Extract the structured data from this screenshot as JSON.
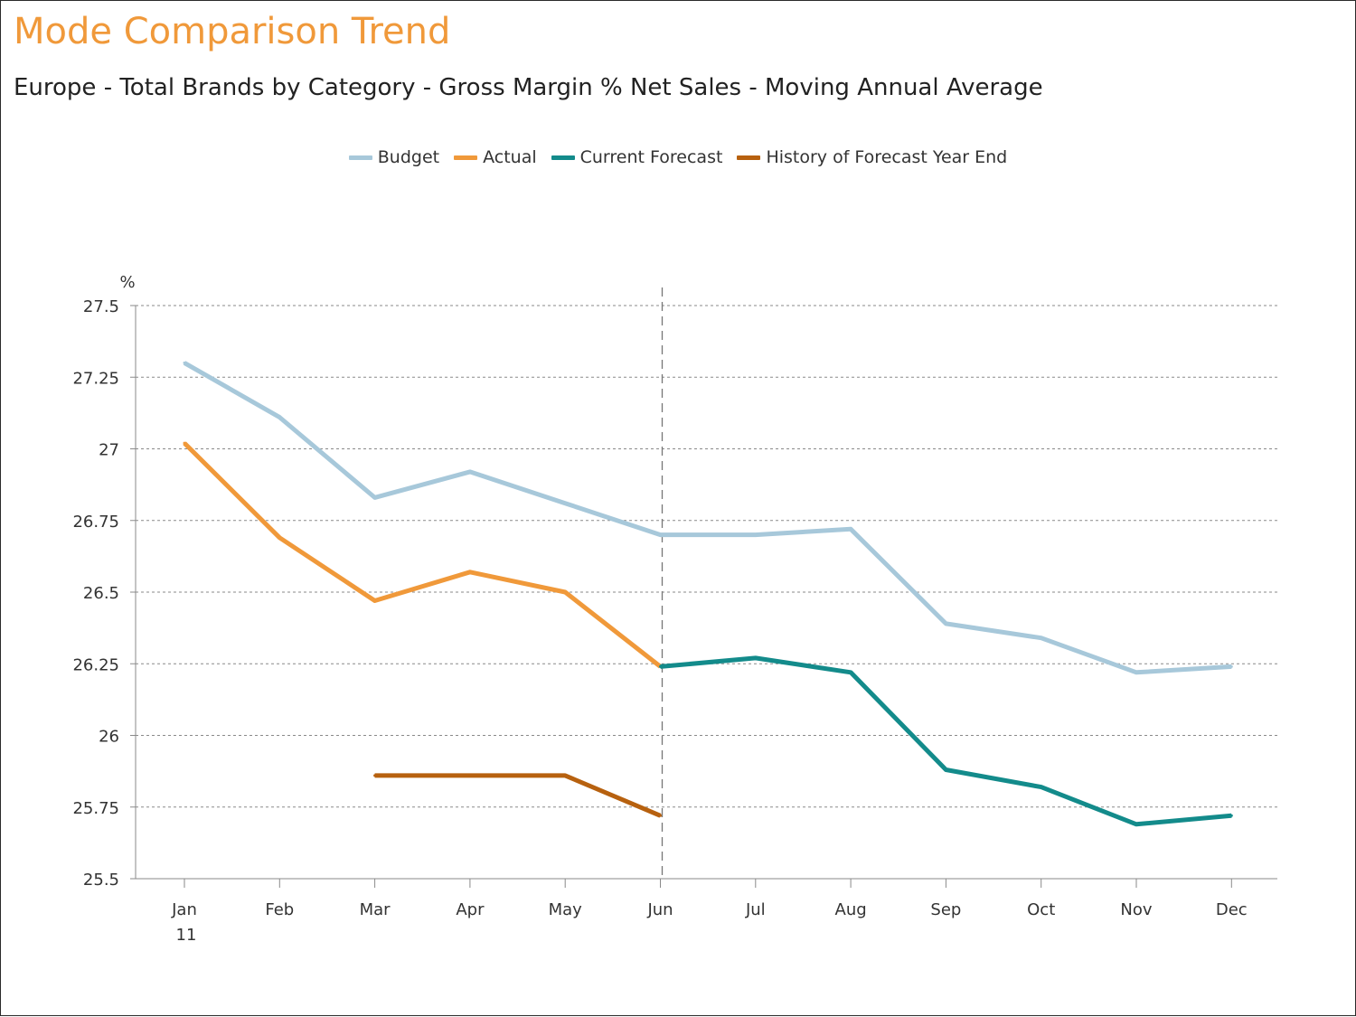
{
  "title": "Mode Comparison Trend",
  "subtitle": "Europe - Total Brands by Category - Gross Margin % Net Sales - Moving Annual Average",
  "legend": [
    {
      "label": "Budget",
      "color": "#A7C8DA"
    },
    {
      "label": "Actual",
      "color": "#F0993A"
    },
    {
      "label": "Current Forecast",
      "color": "#138B8B"
    },
    {
      "label": "History of Forecast Year End",
      "color": "#B7610F"
    }
  ],
  "chart_data": {
    "type": "line",
    "categories": [
      "Jan",
      "Feb",
      "Mar",
      "Apr",
      "May",
      "Jun",
      "Jul",
      "Aug",
      "Sep",
      "Oct",
      "Nov",
      "Dec"
    ],
    "year_label": "11",
    "ylabel": "%",
    "ylim": [
      25.5,
      27.5
    ],
    "yticks": [
      "27.5",
      "27.25",
      "27",
      "26.75",
      "26.5",
      "26.25",
      "26",
      "25.75",
      "25.5"
    ],
    "grid": true,
    "legend_position": "top-center",
    "divider_category": "Jun",
    "series": [
      {
        "name": "Budget",
        "color": "#A7C8DA",
        "values": [
          27.3,
          27.11,
          26.83,
          26.92,
          26.81,
          26.7,
          26.7,
          26.72,
          26.39,
          26.34,
          26.22,
          26.24
        ]
      },
      {
        "name": "Actual",
        "color": "#F0993A",
        "values": [
          27.02,
          26.69,
          26.47,
          26.57,
          26.5,
          26.24,
          null,
          null,
          null,
          null,
          null,
          null
        ]
      },
      {
        "name": "Current Forecast",
        "color": "#138B8B",
        "values": [
          null,
          null,
          null,
          null,
          null,
          26.24,
          26.27,
          26.22,
          25.88,
          25.82,
          25.69,
          25.72
        ]
      },
      {
        "name": "History of Forecast Year End",
        "color": "#B7610F",
        "values": [
          null,
          null,
          25.86,
          25.86,
          25.86,
          25.72,
          null,
          null,
          null,
          null,
          null,
          null
        ]
      }
    ]
  }
}
